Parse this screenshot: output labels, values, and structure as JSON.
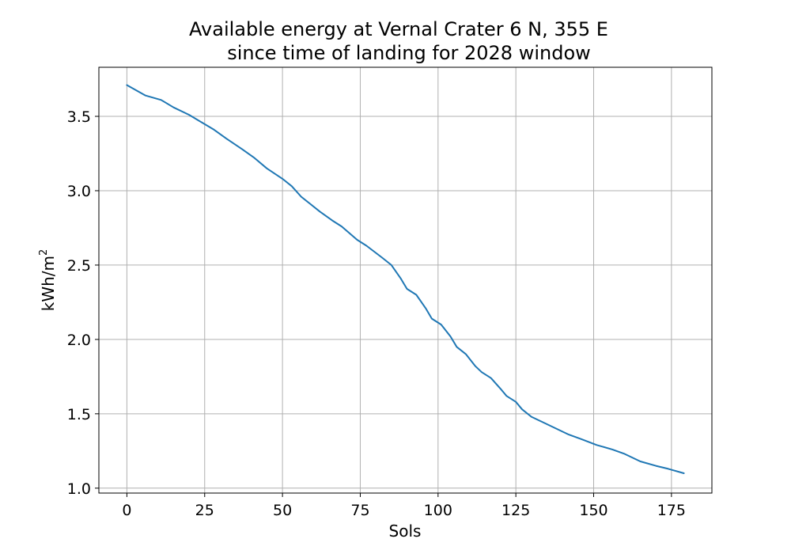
{
  "chart_data": {
    "type": "line",
    "title_lines": [
      "Available energy at Vernal Crater 6 N, 355 E",
      "since time of landing for 2028 window"
    ],
    "xlabel": "Sols",
    "ylabel": {
      "base": "kWh/m",
      "sup": "2"
    },
    "xlim": [
      -9,
      188
    ],
    "ylim": [
      0.967,
      3.83
    ],
    "xticks": [
      0,
      25,
      50,
      75,
      100,
      125,
      150,
      175
    ],
    "yticks": [
      1.0,
      1.5,
      2.0,
      2.5,
      3.0,
      3.5
    ],
    "xtick_labels": [
      "0",
      "25",
      "50",
      "75",
      "100",
      "125",
      "150",
      "175"
    ],
    "ytick_labels": [
      "1.0",
      "1.5",
      "2.0",
      "2.5",
      "3.0",
      "3.5"
    ],
    "grid": true,
    "color": "#1f77b4",
    "series": [
      {
        "name": "Available energy",
        "x": [
          0,
          6,
          11,
          15,
          20,
          24,
          28,
          32,
          37,
          41,
          45,
          50,
          53,
          56,
          59,
          62,
          66,
          69,
          74,
          77,
          82,
          85,
          88,
          90,
          93,
          96,
          98,
          101,
          104,
          106,
          109,
          112,
          114,
          117,
          120,
          122,
          125,
          127,
          130,
          134,
          138,
          142,
          146,
          151,
          156,
          160,
          165,
          170,
          174,
          179
        ],
        "y": [
          3.71,
          3.64,
          3.61,
          3.56,
          3.51,
          3.46,
          3.41,
          3.35,
          3.28,
          3.22,
          3.15,
          3.08,
          3.03,
          2.96,
          2.91,
          2.86,
          2.8,
          2.76,
          2.67,
          2.63,
          2.55,
          2.5,
          2.41,
          2.34,
          2.3,
          2.21,
          2.14,
          2.1,
          2.02,
          1.95,
          1.9,
          1.82,
          1.78,
          1.74,
          1.67,
          1.62,
          1.58,
          1.53,
          1.48,
          1.44,
          1.4,
          1.36,
          1.33,
          1.29,
          1.26,
          1.23,
          1.18,
          1.15,
          1.13,
          1.1
        ]
      }
    ]
  }
}
